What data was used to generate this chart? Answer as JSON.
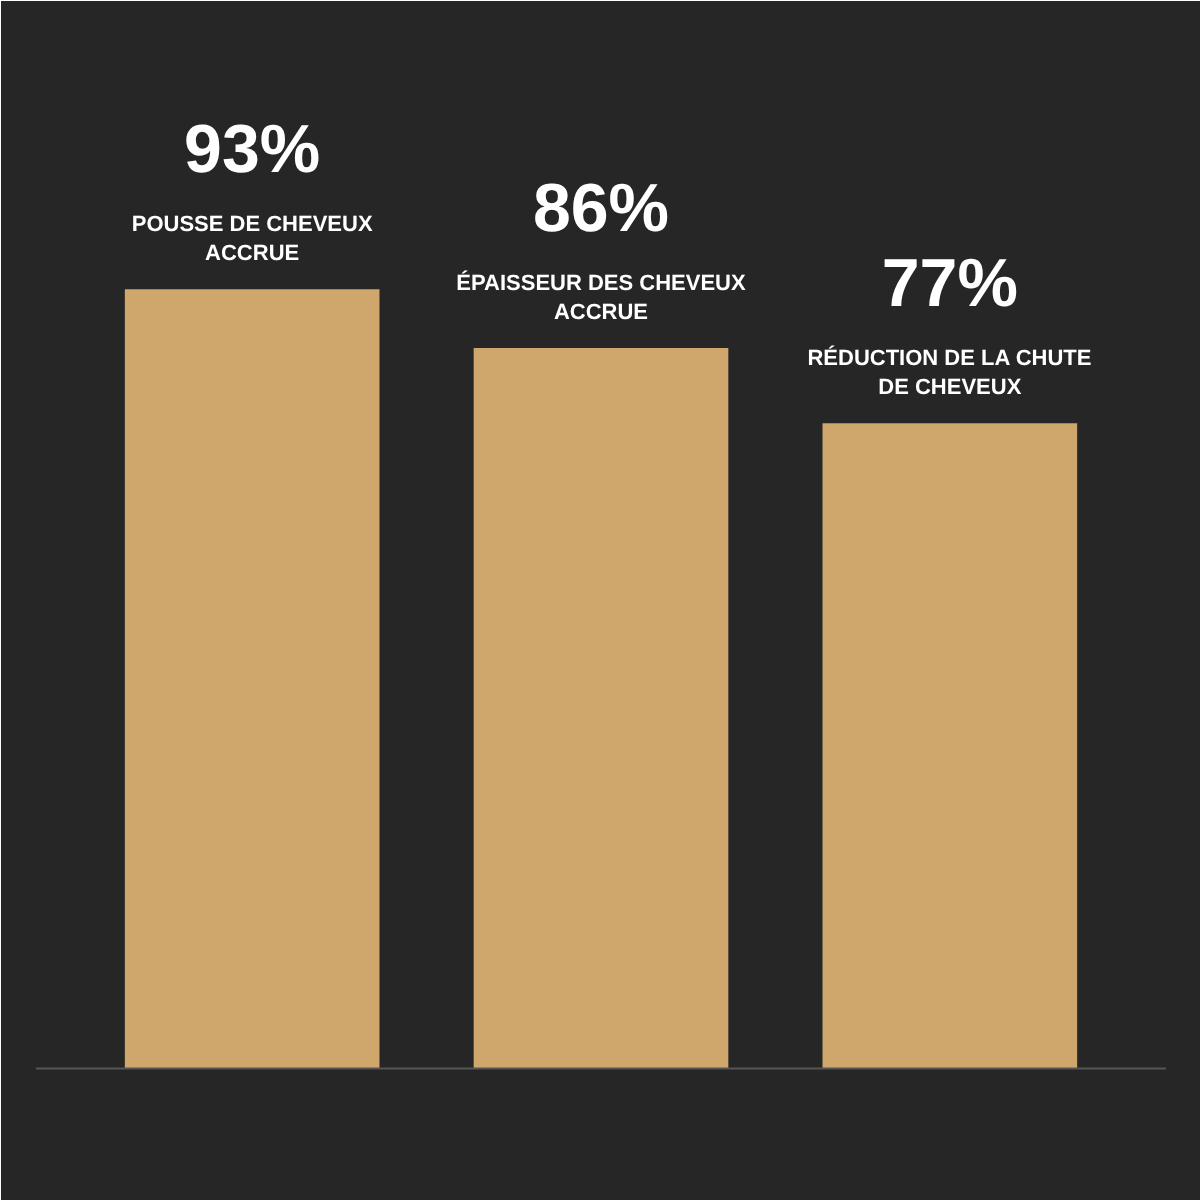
{
  "chart_data": {
    "type": "bar",
    "categories": [
      "POUSSE DE CHEVEUX\nACCRUE",
      "ÉPAISSEUR DES CHEVEUX\nACCRUE",
      "RÉDUCTION DE LA CHUTE\nDE CHEVEUX"
    ],
    "values": [
      93,
      86,
      77
    ],
    "value_labels": [
      "93%",
      "86%",
      "77%"
    ],
    "color": "#cfa66b"
  }
}
